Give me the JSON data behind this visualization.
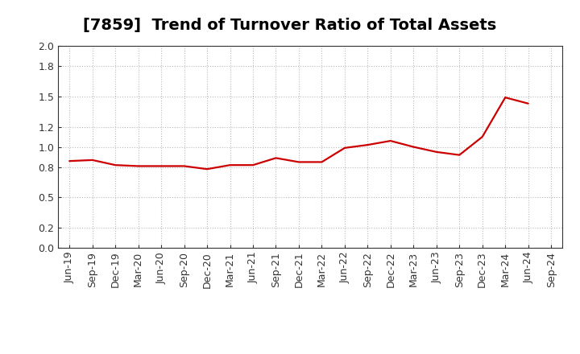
{
  "title": "[7859]  Trend of Turnover Ratio of Total Assets",
  "x_labels": [
    "Jun-19",
    "Sep-19",
    "Dec-19",
    "Mar-20",
    "Jun-20",
    "Sep-20",
    "Dec-20",
    "Mar-21",
    "Jun-21",
    "Sep-21",
    "Dec-21",
    "Mar-22",
    "Jun-22",
    "Sep-22",
    "Dec-22",
    "Mar-23",
    "Jun-23",
    "Sep-23",
    "Dec-23",
    "Mar-24",
    "Jun-24",
    "Sep-24"
  ],
  "y_values": [
    0.86,
    0.87,
    0.82,
    0.81,
    0.81,
    0.81,
    0.78,
    0.82,
    0.82,
    0.89,
    0.85,
    0.85,
    0.99,
    1.02,
    1.06,
    1.0,
    0.95,
    0.92,
    1.1,
    1.49,
    1.43,
    null
  ],
  "line_color": "#cc0000",
  "background_color": "#ffffff",
  "grid_color": "#bbbbbb",
  "ylim": [
    0.0,
    2.0
  ],
  "yticks": [
    0.0,
    0.2,
    0.5,
    0.8,
    1.0,
    1.2,
    1.5,
    1.8,
    2.0
  ],
  "title_fontsize": 14,
  "tick_fontsize": 9,
  "linewidth": 1.6
}
